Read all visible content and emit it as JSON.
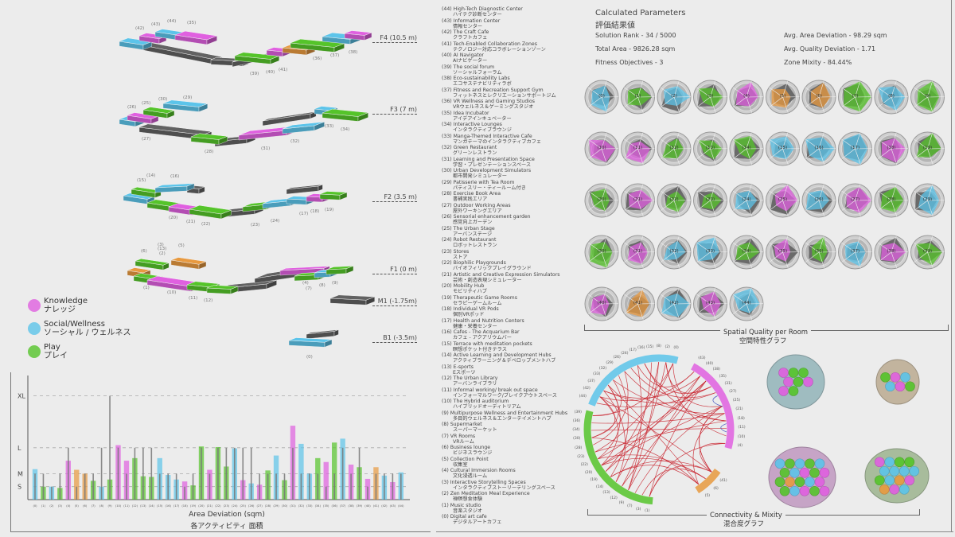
{
  "colors": {
    "knowledge": "#e060e0",
    "social": "#5cc4ea",
    "play": "#55c42a",
    "other": "#e89a40",
    "grey": "#626262"
  },
  "legend": [
    {
      "cat": "knowledge",
      "en": "Knowledge",
      "jp": "ナレッジ"
    },
    {
      "cat": "social",
      "en": "Social/Wellness",
      "jp": "ソーシャル / ウェルネス"
    },
    {
      "cat": "play",
      "en": "Play",
      "jp": "プレイ"
    }
  ],
  "floors": [
    {
      "label": "F4 (10.5 m)",
      "rooms": [
        "(42)",
        "(43)",
        "(44)",
        "(35)",
        "(39)",
        "(40)",
        "(41)",
        "(36)",
        "(37)",
        "(38)"
      ]
    },
    {
      "label": "F3 (7 m)",
      "rooms": [
        "(26)",
        "(25)",
        "(30)",
        "(29)",
        "(27)",
        "(28)",
        "(31)",
        "(32)",
        "(33)",
        "(34)"
      ]
    },
    {
      "label": "F2 (3.5 m)",
      "rooms": [
        "(15)",
        "(14)",
        "(16)",
        "(20)",
        "(21)",
        "(22)",
        "(23)",
        "(24)",
        "(17)",
        "(18)",
        "(19)"
      ]
    },
    {
      "label": "F1 (0 m)",
      "rooms": [
        "(6)",
        "(3)",
        "(13)",
        "(2)",
        "(5)",
        "(1)",
        "(10)",
        "(11)",
        "(12)",
        "(4)",
        "(7)",
        "(8)",
        "(9)"
      ]
    },
    {
      "label": "M1 (-1.75m)",
      "rooms": []
    },
    {
      "label": "B1 (-3.5m)",
      "rooms": [
        "(0)"
      ]
    }
  ],
  "rooms": [
    {
      "num": 44,
      "id": "(44)",
      "en": "High-Tech Diagnostic Center",
      "jp": "ハイテク診断センター",
      "cat": "social"
    },
    {
      "num": 43,
      "id": "(43)",
      "en": "Information Center",
      "jp": "情報センター",
      "cat": "knowledge"
    },
    {
      "num": 42,
      "id": "(42)",
      "en": "The Craft Cafe",
      "jp": "クラフトカフェ",
      "cat": "social"
    },
    {
      "num": 41,
      "id": "(41)",
      "en": "Tech-Enabled Collaboration Zones",
      "jp": "テクノロジー対応コラボレーションゾーン",
      "cat": "other"
    },
    {
      "num": 40,
      "id": "(40)",
      "en": "AI Navigator",
      "jp": "AIナビゲーター",
      "cat": "knowledge"
    },
    {
      "num": 39,
      "id": "(39)",
      "en": "The social forum",
      "jp": "ソーシャルフォーラム",
      "cat": "play"
    },
    {
      "num": 38,
      "id": "(38)",
      "en": "Eco-sustainability Labs",
      "jp": "エコサステナビリティラボ",
      "cat": "knowledge"
    },
    {
      "num": 37,
      "id": "(37)",
      "en": "Fitness and Recreation Support Gym",
      "jp": "フィットネスとレクリエーションサポートジム",
      "cat": "social"
    },
    {
      "num": 36,
      "id": "(36)",
      "en": "VR Wellness and Gaming Studios",
      "jp": "VRウェルネス＆ゲーミングスタジオ",
      "cat": "play"
    },
    {
      "num": 35,
      "id": "(35)",
      "en": "Idea Incubator",
      "jp": "アイデアインキュベーター",
      "cat": "knowledge"
    },
    {
      "num": 34,
      "id": "(34)",
      "en": "Interactive Lounges",
      "jp": "インタラクティブラウンジ",
      "cat": "play"
    },
    {
      "num": 33,
      "id": "(33)",
      "en": "Manga-Themed Interactive Cafe",
      "jp": "マンガテーマのインタラクティブカフェ",
      "cat": "social"
    },
    {
      "num": 32,
      "id": "(32)",
      "en": "Green Restaurant",
      "jp": "グリーンレストラン",
      "cat": "social"
    },
    {
      "num": 31,
      "id": "(31)",
      "en": "Learning and Presentation Space",
      "jp": "学習・プレゼンテーションスペース",
      "cat": "knowledge"
    },
    {
      "num": 30,
      "id": "(30)",
      "en": "Urban Development Simulators",
      "jp": "都市開発シミュレーター",
      "cat": "play"
    },
    {
      "num": 29,
      "id": "(29)",
      "en": "Patisserie with Tea Room",
      "jp": "パティスリー・ティールーム付き",
      "cat": "social"
    },
    {
      "num": 28,
      "id": "(28)",
      "en": "Exercise Book Area",
      "jp": "書補実践エリア",
      "cat": "play"
    },
    {
      "num": 27,
      "id": "(27)",
      "en": "Outdoor Working Areas",
      "jp": "屋外ワーキングエリア",
      "cat": "knowledge"
    },
    {
      "num": 26,
      "id": "(26)",
      "en": "Sensorial enhancement garden",
      "jp": "感覚向上ガーデン",
      "cat": "social"
    },
    {
      "num": 25,
      "id": "(25)",
      "en": "The Urban Stage",
      "jp": "アーバンステージ",
      "cat": "knowledge"
    },
    {
      "num": 24,
      "id": "(24)",
      "en": "Robot Restaurant",
      "jp": "ロボットレストラン",
      "cat": "social"
    },
    {
      "num": 23,
      "id": "(23)",
      "en": "Stores",
      "jp": "ストア",
      "cat": "play"
    },
    {
      "num": 22,
      "id": "(22)",
      "en": "Biophilic Playgrounds",
      "jp": "バイオフィリックプレイグラウンド",
      "cat": "play"
    },
    {
      "num": 21,
      "id": "(21)",
      "en": "Artistic and Creative Expression Simulators",
      "jp": "芸術・創造表現シミュレーター",
      "cat": "knowledge"
    },
    {
      "num": 20,
      "id": "(20)",
      "en": "Mobility Hub",
      "jp": "モビリティハブ",
      "cat": "play"
    },
    {
      "num": 19,
      "id": "(19)",
      "en": "Therapeutic Game Rooms",
      "jp": "セラピーゲームルーム",
      "cat": "play"
    },
    {
      "num": 18,
      "id": "(18)",
      "en": "Individual VR Pods",
      "jp": "個別VRポッド",
      "cat": "knowledge"
    },
    {
      "num": 17,
      "id": "(17)",
      "en": "Health and Nutrition Centers",
      "jp": "健康・栄養センター",
      "cat": "social"
    },
    {
      "num": 16,
      "id": "(16)",
      "en": "Cafes - The Acquarium Bar",
      "jp": "カフェ - アクアリウムバー",
      "cat": "social"
    },
    {
      "num": 15,
      "id": "(15)",
      "en": "Terrace with meditation pockets",
      "jp": "瞑想ポケット付きテラス",
      "cat": "social"
    },
    {
      "num": 14,
      "id": "(14)",
      "en": "Active Learning and Development Hubs",
      "jp": "アクティブラーニング＆デベロップメントハブ",
      "cat": "play"
    },
    {
      "num": 13,
      "id": "(13)",
      "en": "E-sports",
      "jp": "Eスポーツ",
      "cat": "play"
    },
    {
      "num": 12,
      "id": "(12)",
      "en": "The Urban Library",
      "jp": "アーバンライブラリ",
      "cat": "play"
    },
    {
      "num": 11,
      "id": "(11)",
      "en": "Informal working/ break out space",
      "jp": "インフォーマルワーク/ブレイクアウトスペース",
      "cat": "knowledge"
    },
    {
      "num": 10,
      "id": "(10)",
      "en": "The Hybrid auditorium",
      "jp": "ハイブリッドオーディトリアム",
      "cat": "knowledge"
    },
    {
      "num": 9,
      "id": "(9)",
      "en": "Multipurpose Wellness and Entertainment Hubs",
      "jp": "多目的ウェルネス＆エンターテイメントハブ",
      "cat": "play"
    },
    {
      "num": 8,
      "id": "(8)",
      "en": "Supermarket",
      "jp": "スーパーマーケット",
      "cat": "social"
    },
    {
      "num": 7,
      "id": "(7)",
      "en": "VR Rooms",
      "jp": "VRルーム",
      "cat": "play"
    },
    {
      "num": 6,
      "id": "(6)",
      "en": "Business lounge",
      "jp": "ビジネスラウンジ",
      "cat": "other"
    },
    {
      "num": 5,
      "id": "(5)",
      "en": "Collection Point",
      "jp": "収集室",
      "cat": "other"
    },
    {
      "num": 4,
      "id": "(4)",
      "en": "Cultural Immersion Rooms",
      "jp": "文化浸透ルーム",
      "cat": "knowledge"
    },
    {
      "num": 3,
      "id": "(3)",
      "en": "Interactive Storytelling Spaces",
      "jp": "インタラクティブストーリーテリングスペース",
      "cat": "play"
    },
    {
      "num": 2,
      "id": "(2)",
      "en": "Zen Meditation Meal Experience",
      "jp": "禅瞑想食体験",
      "cat": "social"
    },
    {
      "num": 1,
      "id": "(1)",
      "en": "Music studio",
      "jp": "音楽スタジオ",
      "cat": "play"
    },
    {
      "num": 0,
      "id": "(0)",
      "en": "Digital art cafe",
      "jp": "デジタルアートカフェ",
      "cat": "social"
    }
  ],
  "params": {
    "title": "Calculated Parameters",
    "title_jp": "評価結果値",
    "rank": "Solution Rank - 34 / 5000",
    "area": "Total Area - 9826.28 sqm",
    "fitness": "Fitness Objectives - 3",
    "avg_area_dev": "Avg. Area Deviation - 98.29 sqm",
    "avg_quality_dev": "Avg. Quality Deviation - 1.71",
    "mixity": "Zone Mixity  - 84.44%"
  },
  "radar": {
    "title": "Spatial Quality per Room",
    "title_jp": "空間特性グラフ"
  },
  "connectivity": {
    "title": "Connectivity & Mixity",
    "title_jp": "混合度グラフ",
    "groups": [
      {
        "cat": "social",
        "ids": [
          "(44)",
          "(42)",
          "(37)",
          "(33)",
          "(32)",
          "(29)",
          "(26)",
          "(24)",
          "(17)",
          "(16)",
          "(15)",
          "(8)",
          "(2)",
          "(0)"
        ]
      },
      {
        "cat": "knowledge",
        "ids": [
          "(43)",
          "(40)",
          "(38)",
          "(35)",
          "(31)",
          "(27)",
          "(25)",
          "(21)",
          "(18)",
          "(11)",
          "(10)",
          "(4)"
        ]
      },
      {
        "cat": "other",
        "ids": [
          "(41)",
          "(6)",
          "(5)"
        ]
      },
      {
        "cat": "play",
        "ids": [
          "(1)",
          "(3)",
          "(7)",
          "(9)",
          "(12)",
          "(13)",
          "(14)",
          "(19)",
          "(20)",
          "(22)",
          "(23)",
          "(28)",
          "(30)",
          "(34)",
          "(36)",
          "(39)"
        ]
      }
    ],
    "clusters": [
      {
        "bg": "#9fbcc0",
        "members": [
          "knowledge",
          "play",
          "play",
          "knowledge",
          "play",
          "knowledge",
          "knowledge",
          "play"
        ]
      },
      {
        "bg": "#c2b49e",
        "members": [
          "play",
          "knowledge",
          "social",
          "social",
          "knowledge",
          "play"
        ]
      },
      {
        "bg": "#c6a4c6",
        "members": [
          "social",
          "play",
          "social",
          "play",
          "social",
          "play",
          "social",
          "knowledge",
          "play",
          "knowledge",
          "play",
          "other",
          "play",
          "social",
          "knowledge",
          "play",
          "social",
          "knowledge",
          "play",
          "knowledge"
        ]
      },
      {
        "bg": "#a8bc9c",
        "members": [
          "knowledge",
          "social",
          "play",
          "play",
          "social",
          "social",
          "social",
          "social",
          "play",
          "social",
          "other",
          "knowledge",
          "other",
          "knowledge",
          "social"
        ]
      }
    ]
  },
  "chart_data": {
    "type": "bar",
    "title": "Area Deviation (sqm)",
    "title_jp": "各アクティビティ 面積",
    "ytick_labels": [
      "S",
      "M",
      "L",
      "XL"
    ],
    "ytick_values": [
      1,
      2,
      4,
      8
    ],
    "categories": [
      "(0)",
      "(1)",
      "(2)",
      "(3)",
      "(4)",
      "(5)",
      "(6)",
      "(7)",
      "(8)",
      "(9)",
      "(10)",
      "(11)",
      "(12)",
      "(13)",
      "(14)",
      "(15)",
      "(16)",
      "(17)",
      "(18)",
      "(19)",
      "(20)",
      "(21)",
      "(22)",
      "(23)",
      "(24)",
      "(25)",
      "(26)",
      "(27)",
      "(28)",
      "(29)",
      "(30)",
      "(31)",
      "(32)",
      "(33)",
      "(34)",
      "(35)",
      "(36)",
      "(37)",
      "(38)",
      "(39)",
      "(40)",
      "(41)",
      "(42)",
      "(43)",
      "(44)"
    ],
    "series": [
      {
        "name": "actual",
        "values": [
          2.35,
          1.0,
          1.0,
          0.9,
          3.0,
          2.3,
          2.0,
          1.45,
          1.0,
          1.55,
          4.2,
          3.0,
          3.2,
          1.8,
          1.75,
          3.2,
          1.9,
          1.55,
          1.4,
          1.1,
          4.1,
          2.3,
          4.05,
          2.55,
          3.95,
          1.5,
          1.25,
          1.15,
          2.25,
          3.4,
          1.5,
          5.7,
          4.3,
          2.0,
          3.2,
          2.9,
          4.4,
          4.7,
          2.7,
          2.5,
          1.6,
          2.5,
          1.85,
          1.35,
          2.1
        ]
      },
      {
        "name": "target",
        "values": [
          2,
          2,
          1,
          2,
          4,
          1,
          2,
          2,
          4,
          8,
          4,
          2,
          4,
          4,
          4,
          2,
          2,
          2,
          1,
          2,
          4,
          2,
          4,
          4,
          4,
          4,
          4,
          2,
          2,
          2,
          2,
          4,
          2,
          2,
          2,
          1,
          2,
          4,
          2,
          4,
          1,
          2,
          2,
          2,
          2
        ]
      }
    ],
    "ylim": [
      0,
      9
    ],
    "grid": "dashed at tick values"
  }
}
